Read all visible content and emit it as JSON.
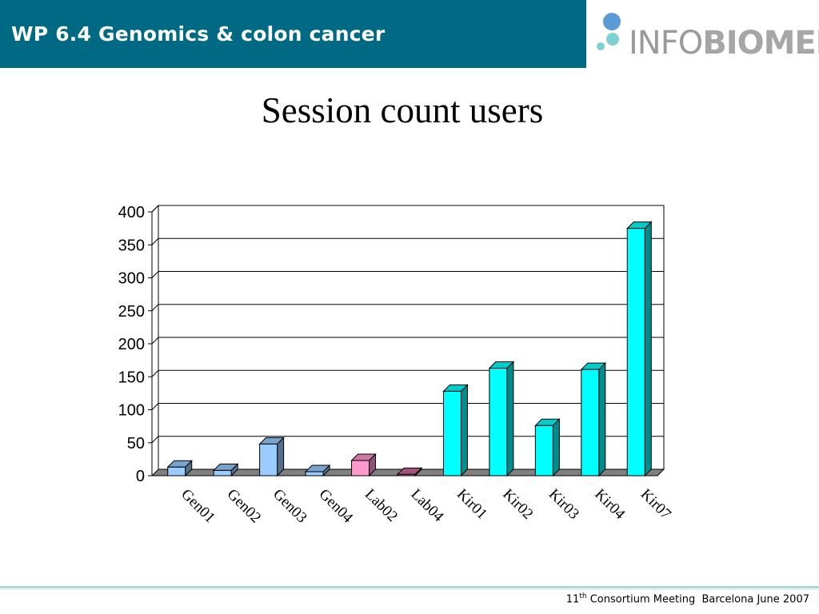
{
  "header": {
    "title": "WP 6.4 Genomics & colon cancer",
    "logo": {
      "text_light": "INFO",
      "text_bold": "BIOMED",
      "icon": "infobiomed-dots-icon"
    }
  },
  "slide_title": "Session count users",
  "chart_data": {
    "type": "bar",
    "title": "",
    "xlabel": "",
    "ylabel": "",
    "categories": [
      "Gen01",
      "Gen02",
      "Gen03",
      "Gen04",
      "Lab02",
      "Lab04",
      "Kir01",
      "Kir02",
      "Kir03",
      "Kir04",
      "Kir07"
    ],
    "values": [
      13,
      8,
      48,
      6,
      23,
      2,
      128,
      163,
      76,
      161,
      375
    ],
    "bar_colors": [
      "#99ccff",
      "#99ccff",
      "#99ccff",
      "#99ccff",
      "#ff99cc",
      "#cc6699",
      "#00ffff",
      "#00ffff",
      "#00ffff",
      "#00ffff",
      "#00ffff"
    ],
    "ylim": [
      0,
      400
    ],
    "yticks": [
      0,
      50,
      100,
      150,
      200,
      250,
      300,
      350,
      400
    ],
    "grid": true,
    "legend": "none",
    "style": "3d-column"
  },
  "footer": {
    "ordinal": "11",
    "ordinal_suffix": "th",
    "event": "Consortium Meeting",
    "location_date": "Barcelona June 2007"
  }
}
